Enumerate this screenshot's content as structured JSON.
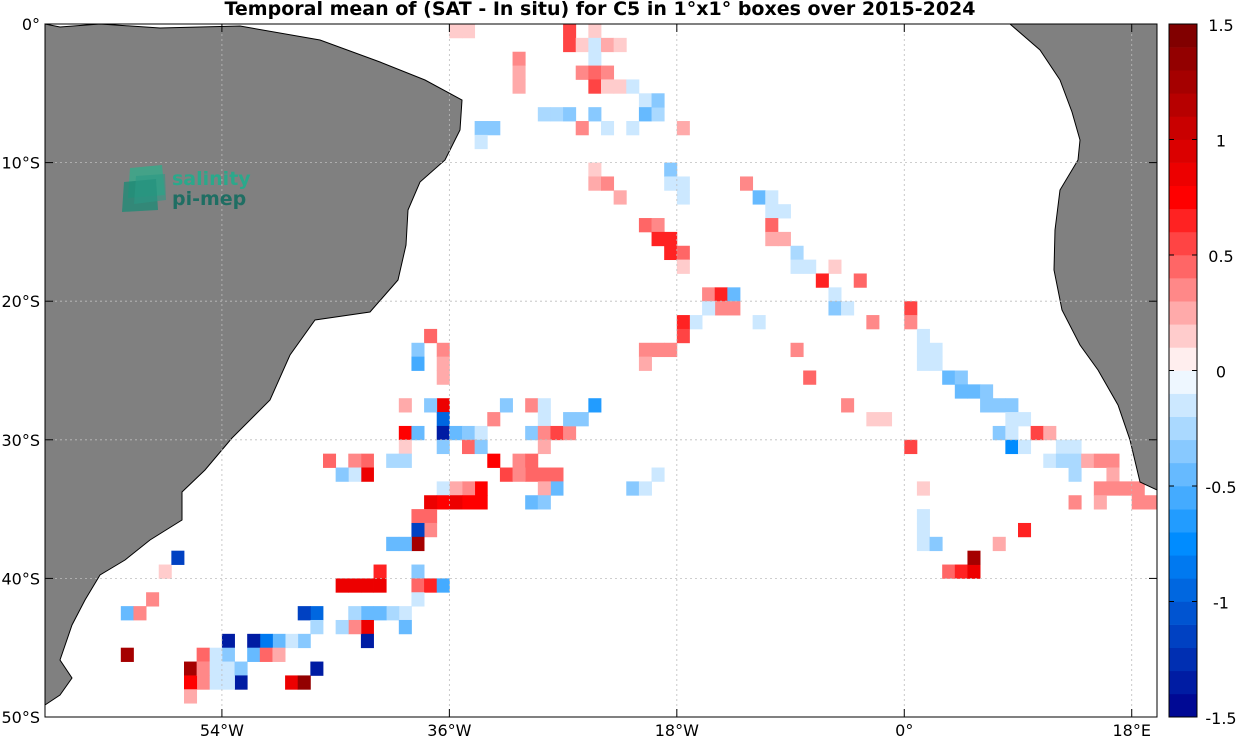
{
  "chart_data": {
    "type": "heatmap",
    "title": "Temporal mean of (SAT - In situ) for C5 in 1°x1° boxes over 2015-2024",
    "xlabel": "",
    "ylabel": "",
    "xlim": [
      -68,
      20
    ],
    "ylim": [
      -50,
      0
    ],
    "grid": true,
    "x_ticks": [
      -54,
      -36,
      -18,
      0,
      18
    ],
    "x_tick_labels": [
      "54°W",
      "36°W",
      "18°W",
      "0°",
      "18°E"
    ],
    "y_ticks": [
      0,
      -10,
      -20,
      -30,
      -40,
      -50
    ],
    "y_tick_labels": [
      "0°",
      "10°S",
      "20°S",
      "30°S",
      "40°S",
      "50°S"
    ],
    "colorbar": {
      "min": -1.5,
      "max": 1.5,
      "levels": 30,
      "ticks": [
        1.5,
        1,
        0.5,
        0,
        -0.5,
        -1,
        -1.5
      ],
      "tick_labels": [
        "1.5",
        "1",
        "0.5",
        "0",
        "-0.5",
        "-1",
        "-1.5"
      ]
    },
    "land_color": "#808080",
    "cells": [
      [
        -35.5,
        -0.5,
        0.15
      ],
      [
        -34.5,
        -0.5,
        0.15
      ],
      [
        -26.5,
        -0.5,
        0.55
      ],
      [
        -26.5,
        -1.5,
        0.55
      ],
      [
        -25.5,
        -1.5,
        0.15
      ],
      [
        -24.5,
        -0.5,
        0.15
      ],
      [
        -24.5,
        -1.5,
        -0.2
      ],
      [
        -23.5,
        -1.5,
        0.25
      ],
      [
        -22.5,
        -1.5,
        0.15
      ],
      [
        -30.5,
        -2.5,
        0.4
      ],
      [
        -24.5,
        -2.5,
        -0.15
      ],
      [
        -30.5,
        -3.5,
        0.2
      ],
      [
        -30.5,
        -4.5,
        0.25
      ],
      [
        -25.5,
        -3.5,
        0.4
      ],
      [
        -24.5,
        -3.5,
        0.45
      ],
      [
        -23.5,
        -3.5,
        0.35
      ],
      [
        -24.5,
        -4.5,
        0.55
      ],
      [
        -23.5,
        -4.5,
        0.1
      ],
      [
        -22.5,
        -4.5,
        0.1
      ],
      [
        -21.5,
        -4.5,
        -0.15
      ],
      [
        -20.5,
        -5.5,
        -0.2
      ],
      [
        -20.5,
        -6.5,
        -0.5
      ],
      [
        -19.5,
        -6.5,
        -0.25
      ],
      [
        -19.5,
        -5.5,
        -0.3
      ],
      [
        -28.5,
        -6.5,
        -0.25
      ],
      [
        -27.5,
        -6.5,
        -0.25
      ],
      [
        -26.5,
        -6.5,
        -0.4
      ],
      [
        -24.5,
        -6.5,
        -0.3
      ],
      [
        -23.5,
        -7.5,
        -0.15
      ],
      [
        -25.5,
        -7.5,
        0.3
      ],
      [
        -21.5,
        -7.5,
        -0.12
      ],
      [
        -17.5,
        -7.5,
        0.2
      ],
      [
        -32.5,
        -7.5,
        -0.4
      ],
      [
        -33.5,
        -7.5,
        -0.3
      ],
      [
        -33.5,
        -8.5,
        -0.2
      ],
      [
        -24.5,
        -10.5,
        0.15
      ],
      [
        -24.5,
        -11.5,
        0.2
      ],
      [
        -23.5,
        -11.5,
        0.3
      ],
      [
        -22.5,
        -12.5,
        0.25
      ],
      [
        -18.5,
        -10.5,
        -0.3
      ],
      [
        -18.5,
        -11.5,
        -0.2
      ],
      [
        -17.5,
        -11.5,
        -0.15
      ],
      [
        -17.5,
        -12.5,
        -0.12
      ],
      [
        -12.5,
        -11.5,
        0.3
      ],
      [
        -11.5,
        -12.5,
        -0.45
      ],
      [
        -10.5,
        -12.5,
        -0.15
      ],
      [
        -10.5,
        -13.5,
        -0.15
      ],
      [
        -9.5,
        -13.5,
        -0.12
      ],
      [
        -20.5,
        -14.5,
        0.45
      ],
      [
        -19.5,
        -14.5,
        0.4
      ],
      [
        -19.5,
        -15.5,
        0.65
      ],
      [
        -18.5,
        -15.5,
        0.65
      ],
      [
        -18.5,
        -16.5,
        0.6
      ],
      [
        -17.5,
        -16.5,
        0.45
      ],
      [
        -17.5,
        -17.5,
        0.15
      ],
      [
        -10.5,
        -14.5,
        0.45
      ],
      [
        -10.5,
        -15.5,
        0.25
      ],
      [
        -9.5,
        -15.5,
        0.25
      ],
      [
        -8.5,
        -16.5,
        -0.25
      ],
      [
        -8.5,
        -17.5,
        -0.2
      ],
      [
        -7.5,
        -17.5,
        -0.15
      ],
      [
        -5.5,
        -17.5,
        0.15
      ],
      [
        -6.5,
        -18.5,
        0.6
      ],
      [
        -5.5,
        -19.5,
        -0.15
      ],
      [
        -5.5,
        -20.5,
        -0.3
      ],
      [
        -4.5,
        -20.5,
        -0.12
      ],
      [
        -3.5,
        -18.5,
        0.45
      ],
      [
        -15.5,
        -19.5,
        0.3
      ],
      [
        -14.5,
        -19.5,
        0.6
      ],
      [
        -13.5,
        -19.5,
        -0.5
      ],
      [
        -14.5,
        -20.5,
        0.35
      ],
      [
        -13.5,
        -20.5,
        0.35
      ],
      [
        -15.5,
        -20.5,
        -0.12
      ],
      [
        -16.5,
        -21.5,
        -0.12
      ],
      [
        -17.5,
        -21.5,
        0.65
      ],
      [
        -17.5,
        -22.5,
        0.55
      ],
      [
        -18.5,
        -23.5,
        0.4
      ],
      [
        -19.5,
        -23.5,
        0.3
      ],
      [
        -20.5,
        -23.5,
        0.3
      ],
      [
        -20.5,
        -24.5,
        0.2
      ],
      [
        -11.5,
        -21.5,
        -0.12
      ],
      [
        -2.5,
        -21.5,
        0.3
      ],
      [
        0.5,
        -20.5,
        0.55
      ],
      [
        0.5,
        -21.5,
        0.35
      ],
      [
        1.5,
        -22.5,
        -0.12
      ],
      [
        1.5,
        -23.5,
        -0.12
      ],
      [
        2.5,
        -23.5,
        -0.12
      ],
      [
        2.5,
        -24.5,
        -0.2
      ],
      [
        1.5,
        -24.5,
        -0.12
      ],
      [
        -8.5,
        -23.5,
        0.4
      ],
      [
        -7.5,
        -25.5,
        0.45
      ],
      [
        -4.5,
        -27.5,
        0.35
      ],
      [
        -2.5,
        -28.5,
        0.15
      ],
      [
        -1.5,
        -28.5,
        0.15
      ],
      [
        3.5,
        -25.5,
        -0.45
      ],
      [
        4.5,
        -25.5,
        -0.35
      ],
      [
        4.5,
        -26.5,
        -0.5
      ],
      [
        5.5,
        -26.5,
        -0.45
      ],
      [
        6.5,
        -26.5,
        -0.4
      ],
      [
        6.5,
        -27.5,
        -0.3
      ],
      [
        7.5,
        -27.5,
        -0.35
      ],
      [
        8.5,
        -27.5,
        -0.3
      ],
      [
        8.5,
        -28.5,
        -0.12
      ],
      [
        9.5,
        -28.5,
        -0.12
      ],
      [
        7.5,
        -29.5,
        -0.3
      ],
      [
        8.5,
        -29.5,
        -0.2
      ],
      [
        8.5,
        -30.5,
        -0.75
      ],
      [
        9.5,
        -30.5,
        -0.12
      ],
      [
        10.5,
        -29.5,
        0.5
      ],
      [
        11.5,
        -29.5,
        0.25
      ],
      [
        12.5,
        -30.5,
        -0.12
      ],
      [
        11.5,
        -31.5,
        -0.15
      ],
      [
        12.5,
        -31.5,
        -0.25
      ],
      [
        13.5,
        -30.5,
        -0.12
      ],
      [
        13.5,
        -31.5,
        -0.25
      ],
      [
        13.5,
        -32.5,
        -0.25
      ],
      [
        14.5,
        -31.5,
        0.25
      ],
      [
        15.5,
        -31.5,
        0.3
      ],
      [
        16.5,
        -31.5,
        0.4
      ],
      [
        16.5,
        -32.5,
        0.25
      ],
      [
        15.5,
        -33.5,
        0.3
      ],
      [
        16.5,
        -33.5,
        0.3
      ],
      [
        17.5,
        -33.5,
        0.35
      ],
      [
        18.5,
        -33.5,
        0.3
      ],
      [
        18.5,
        -34.5,
        0.3
      ],
      [
        19.5,
        -34.5,
        0.3
      ],
      [
        13.5,
        -34.5,
        0.35
      ],
      [
        15.5,
        -34.5,
        0.25
      ],
      [
        0.5,
        -30.5,
        0.55
      ],
      [
        1.5,
        -33.5,
        0.15
      ],
      [
        1.5,
        -35.5,
        -0.2
      ],
      [
        1.5,
        -36.5,
        -0.12
      ],
      [
        1.5,
        -37.5,
        -0.2
      ],
      [
        2.5,
        -37.5,
        -0.3
      ],
      [
        3.5,
        -39.5,
        0.45
      ],
      [
        4.5,
        -39.5,
        0.6
      ],
      [
        5.5,
        -39.5,
        0.9
      ],
      [
        5.5,
        -38.5,
        1.2
      ],
      [
        7.5,
        -37.5,
        0.2
      ],
      [
        9.5,
        -36.5,
        0.6
      ],
      [
        -36.5,
        -27.5,
        0.9
      ],
      [
        -37.5,
        -27.5,
        -0.35
      ],
      [
        -39.5,
        -27.5,
        0.2
      ],
      [
        -36.5,
        -28.5,
        -0.9
      ],
      [
        -36.5,
        -29.5,
        -1.4
      ],
      [
        -36.5,
        -30.5,
        -0.35
      ],
      [
        -35.5,
        -29.5,
        -0.45
      ],
      [
        -34.5,
        -29.5,
        -0.35
      ],
      [
        -33.5,
        -29.5,
        -0.2
      ],
      [
        -34.5,
        -30.5,
        0.45
      ],
      [
        -33.5,
        -30.5,
        -0.3
      ],
      [
        -32.5,
        -28.5,
        0.4
      ],
      [
        -31.5,
        -27.5,
        -0.35
      ],
      [
        -29.5,
        -27.5,
        0.4
      ],
      [
        -28.5,
        -27.5,
        -0.12
      ],
      [
        -28.5,
        -28.5,
        -0.12
      ],
      [
        -29.5,
        -29.5,
        -0.35
      ],
      [
        -28.5,
        -29.5,
        0.3
      ],
      [
        -27.5,
        -29.5,
        0.55
      ],
      [
        -26.5,
        -29.5,
        0.3
      ],
      [
        -26.5,
        -28.5,
        -0.35
      ],
      [
        -25.5,
        -28.5,
        -0.3
      ],
      [
        -24.5,
        -27.5,
        -0.7
      ],
      [
        -28.5,
        -30.5,
        0.25
      ],
      [
        -39.5,
        -29.5,
        0.75
      ],
      [
        -38.5,
        -29.5,
        -0.5
      ],
      [
        -39.5,
        -30.5,
        0.15
      ],
      [
        -39.5,
        -31.5,
        -0.25
      ],
      [
        -40.5,
        -31.5,
        -0.25
      ],
      [
        -42.5,
        -31.5,
        0.45
      ],
      [
        -43.5,
        -31.5,
        0.35
      ],
      [
        -42.5,
        -32.5,
        0.85
      ],
      [
        -43.5,
        -32.5,
        -0.12
      ],
      [
        -44.5,
        -32.5,
        -0.3
      ],
      [
        -45.5,
        -31.5,
        0.45
      ],
      [
        -37.5,
        -22.5,
        0.45
      ],
      [
        -38.5,
        -23.5,
        -0.3
      ],
      [
        -38.5,
        -24.5,
        -0.6
      ],
      [
        -36.5,
        -23.5,
        0.3
      ],
      [
        -36.5,
        -24.5,
        0.25
      ],
      [
        -36.5,
        -25.5,
        0.25
      ],
      [
        -32.5,
        -31.5,
        0.75
      ],
      [
        -31.5,
        -32.5,
        0.55
      ],
      [
        -30.5,
        -31.5,
        0.4
      ],
      [
        -29.5,
        -31.5,
        0.45
      ],
      [
        -29.5,
        -32.5,
        0.45
      ],
      [
        -30.5,
        -32.5,
        0.4
      ],
      [
        -28.5,
        -32.5,
        0.45
      ],
      [
        -27.5,
        -32.5,
        0.45
      ],
      [
        -27.5,
        -33.5,
        -0.45
      ],
      [
        -28.5,
        -33.5,
        0.25
      ],
      [
        -33.5,
        -33.5,
        0.8
      ],
      [
        -33.5,
        -34.5,
        0.75
      ],
      [
        -34.5,
        -33.5,
        0.3
      ],
      [
        -35.5,
        -33.5,
        0.25
      ],
      [
        -36.5,
        -33.5,
        -0.12
      ],
      [
        -34.5,
        -34.5,
        0.75
      ],
      [
        -35.5,
        -34.5,
        0.9
      ],
      [
        -36.5,
        -34.5,
        0.75
      ],
      [
        -37.5,
        -34.5,
        0.85
      ],
      [
        -38.5,
        -35.5,
        0.45
      ],
      [
        -37.5,
        -35.5,
        0.45
      ],
      [
        -37.5,
        -36.5,
        0.4
      ],
      [
        -38.5,
        -36.5,
        -1.2
      ],
      [
        -38.5,
        -37.5,
        1.2
      ],
      [
        -39.5,
        -37.5,
        -0.5
      ],
      [
        -40.5,
        -37.5,
        -0.45
      ],
      [
        -29.5,
        -34.5,
        -0.45
      ],
      [
        -28.5,
        -34.5,
        -0.35
      ],
      [
        -21.5,
        -33.5,
        -0.3
      ],
      [
        -20.5,
        -33.5,
        -0.12
      ],
      [
        -19.5,
        -32.5,
        -0.15
      ],
      [
        -38.5,
        -39.5,
        -0.3
      ],
      [
        -38.5,
        -40.5,
        0.45
      ],
      [
        -37.5,
        -40.5,
        0.65
      ],
      [
        -36.5,
        -40.5,
        -0.55
      ],
      [
        -41.5,
        -39.5,
        0.6
      ],
      [
        -41.5,
        -40.5,
        0.85
      ],
      [
        -42.5,
        -40.5,
        0.9
      ],
      [
        -43.5,
        -40.5,
        0.9
      ],
      [
        -44.5,
        -40.5,
        0.9
      ],
      [
        -38.5,
        -41.5,
        -0.12
      ],
      [
        -39.5,
        -42.5,
        -0.12
      ],
      [
        -40.5,
        -42.5,
        -0.25
      ],
      [
        -41.5,
        -42.5,
        -0.45
      ],
      [
        -42.5,
        -42.5,
        -0.45
      ],
      [
        -43.5,
        -42.5,
        -0.25
      ],
      [
        -39.5,
        -43.5,
        -0.5
      ],
      [
        -42.5,
        -43.5,
        0.9
      ],
      [
        -42.5,
        -44.5,
        -1.3
      ],
      [
        -43.5,
        -43.5,
        0.3
      ],
      [
        -44.5,
        -43.5,
        -0.25
      ],
      [
        -46.5,
        -42.5,
        -1.0
      ],
      [
        -47.5,
        -42.5,
        -1.2
      ],
      [
        -46.5,
        -43.5,
        -0.25
      ],
      [
        -47.5,
        -44.5,
        -0.3
      ],
      [
        -48.5,
        -44.5,
        -0.12
      ],
      [
        -49.5,
        -44.5,
        -0.45
      ],
      [
        -50.5,
        -44.5,
        -0.8
      ],
      [
        -51.5,
        -44.5,
        -1.4
      ],
      [
        -51.5,
        -45.5,
        -0.5
      ],
      [
        -50.5,
        -45.5,
        0.45
      ],
      [
        -49.5,
        -45.5,
        0.2
      ],
      [
        -53.5,
        -44.5,
        -1.4
      ],
      [
        -53.5,
        -45.5,
        -0.3
      ],
      [
        -54.5,
        -45.5,
        -0.15
      ],
      [
        -55.5,
        -45.5,
        0.45
      ],
      [
        -55.5,
        -46.5,
        0.2
      ],
      [
        -54.5,
        -46.5,
        -0.2
      ],
      [
        -53.5,
        -46.5,
        -0.2
      ],
      [
        -52.5,
        -46.5,
        -0.3
      ],
      [
        -52.5,
        -47.5,
        -1.4
      ],
      [
        -53.5,
        -47.5,
        -0.15
      ],
      [
        -54.5,
        -47.5,
        -0.15
      ],
      [
        -55.5,
        -47.5,
        0.4
      ],
      [
        -56.5,
        -46.5,
        1.2
      ],
      [
        -56.5,
        -47.5,
        0.8
      ],
      [
        -56.5,
        -48.5,
        0.25
      ],
      [
        -55.5,
        -46.5,
        0.3
      ],
      [
        -46.5,
        -46.5,
        -1.4
      ],
      [
        -48.5,
        -47.5,
        0.85
      ],
      [
        -47.5,
        -47.5,
        1.4
      ],
      [
        -61.5,
        -45.5,
        1.3
      ],
      [
        -61.5,
        -42.5,
        -0.45
      ],
      [
        -60.5,
        -42.5,
        0.3
      ],
      [
        -59.5,
        -41.5,
        0.4
      ],
      [
        -58.5,
        -39.5,
        0.15
      ],
      [
        -57.5,
        -38.5,
        -1.1
      ]
    ]
  },
  "logo": {
    "line1": "salinity",
    "line2": "pi-mep"
  }
}
